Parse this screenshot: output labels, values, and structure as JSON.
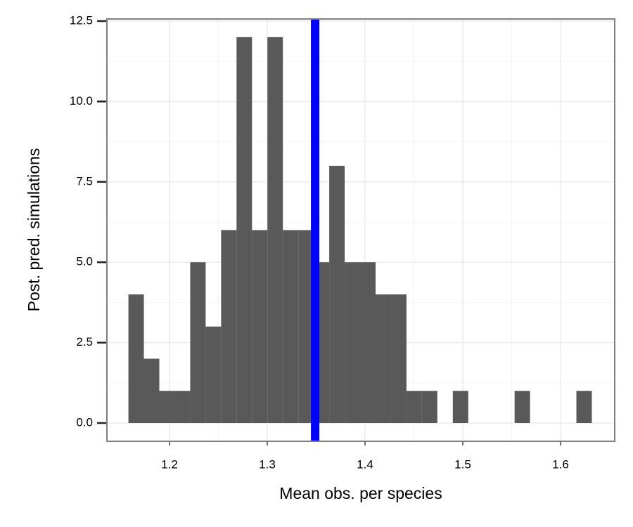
{
  "chart_data": {
    "type": "histogram",
    "x_label": "Mean obs. per species",
    "y_label": "Post. pred. simulations",
    "bins": [
      1.158,
      1.1738,
      1.1896,
      1.2054,
      1.2212,
      1.237,
      1.2528,
      1.2686,
      1.2844,
      1.3002,
      1.316,
      1.3318,
      1.3476,
      1.3634,
      1.3792,
      1.395,
      1.4108,
      1.4266,
      1.4424,
      1.4582,
      1.474,
      1.4898,
      1.5056,
      1.5214,
      1.5372,
      1.553,
      1.5688,
      1.5846,
      1.6004,
      1.6162,
      1.632
    ],
    "values": [
      4,
      2,
      1,
      1,
      5,
      3,
      6,
      12,
      6,
      12,
      6,
      6,
      5,
      8,
      5,
      5,
      4,
      4,
      1,
      1,
      0,
      1,
      0,
      0,
      0,
      1,
      0,
      0,
      0,
      1
    ],
    "color": "#595959",
    "vline": 1.349,
    "vline_color": "#0000ff",
    "xlim": [
      1.136,
      1.6554
    ],
    "ylim": [
      -0.568,
      12.566
    ],
    "xticks": [
      1.2,
      1.3,
      1.4,
      1.5,
      1.6
    ],
    "yticks": [
      {
        "value": 0,
        "label": "0.0"
      },
      2.5,
      {
        "value": 5,
        "label": "5.0"
      },
      7.5,
      {
        "value": 10,
        "label": "10.0"
      },
      12.5
    ],
    "grid": true
  }
}
